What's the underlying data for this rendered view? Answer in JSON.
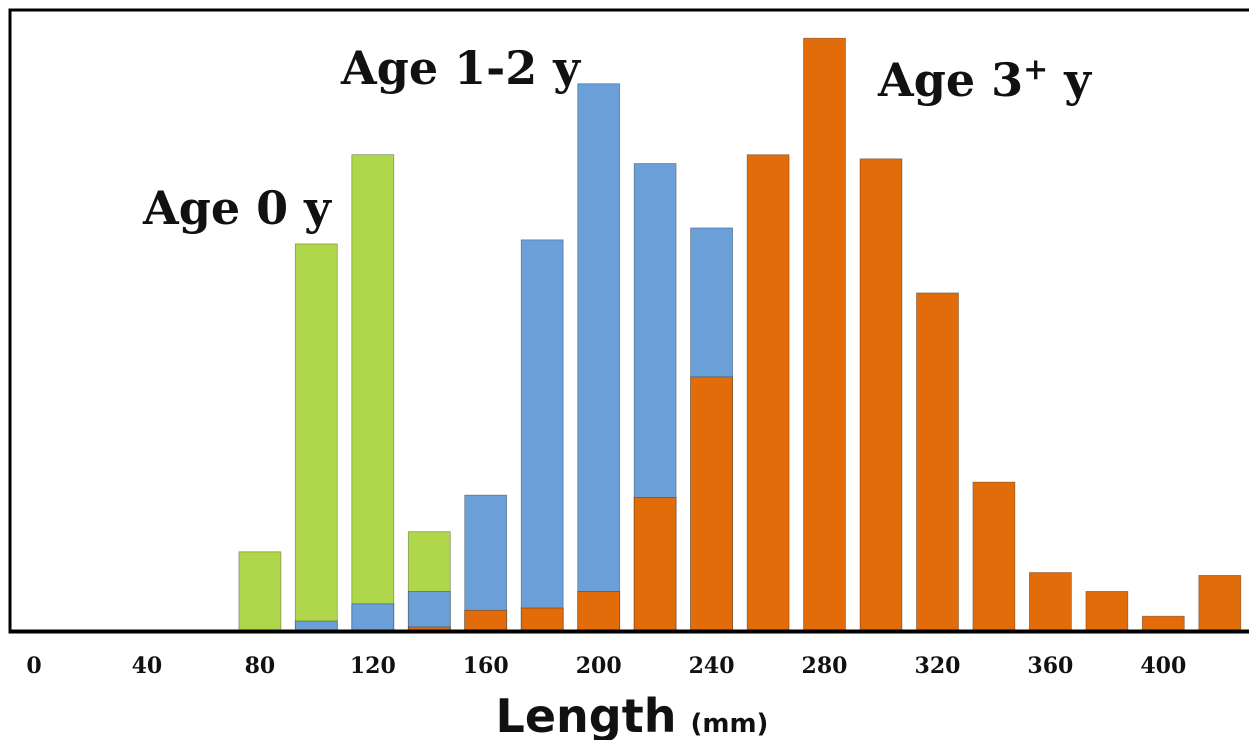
{
  "chart_data": {
    "type": "bar",
    "xlabel": "Length",
    "xunit": "(mm)",
    "xlim": [
      0,
      420
    ],
    "bin_width": 20,
    "x_ticks": [
      "0",
      "40",
      "80",
      "120",
      "160",
      "200",
      "240",
      "280",
      "320",
      "360",
      "400"
    ],
    "grid": false,
    "ylim": [
      0,
      100
    ],
    "series": [
      {
        "name": "Age 0 y",
        "color": "#b0d74b",
        "x": [
          80,
          100,
          120,
          140
        ],
        "values": [
          13.4,
          65.5,
          80.6,
          16.8
        ]
      },
      {
        "name": "Age 1-2 y",
        "color": "#6a9fd8",
        "x": [
          100,
          120,
          140,
          160,
          180,
          200,
          220,
          240
        ],
        "values": [
          1.7,
          4.6,
          6.7,
          23.0,
          66.2,
          92.6,
          79.1,
          68.2
        ]
      },
      {
        "name": "Age 3⁺ y",
        "color": "#e36c0a",
        "x": [
          140,
          160,
          180,
          200,
          220,
          240,
          260,
          280,
          300,
          320,
          340,
          360,
          380,
          400,
          420
        ],
        "values": [
          0.7,
          3.5,
          3.9,
          6.7,
          22.6,
          43.0,
          80.6,
          100.3,
          79.9,
          57.2,
          25.2,
          9.9,
          6.7,
          2.5,
          9.4
        ]
      }
    ],
    "annotations": [
      "Age 0 y",
      "Age 1-2 y",
      "Age 3⁺ y"
    ]
  }
}
